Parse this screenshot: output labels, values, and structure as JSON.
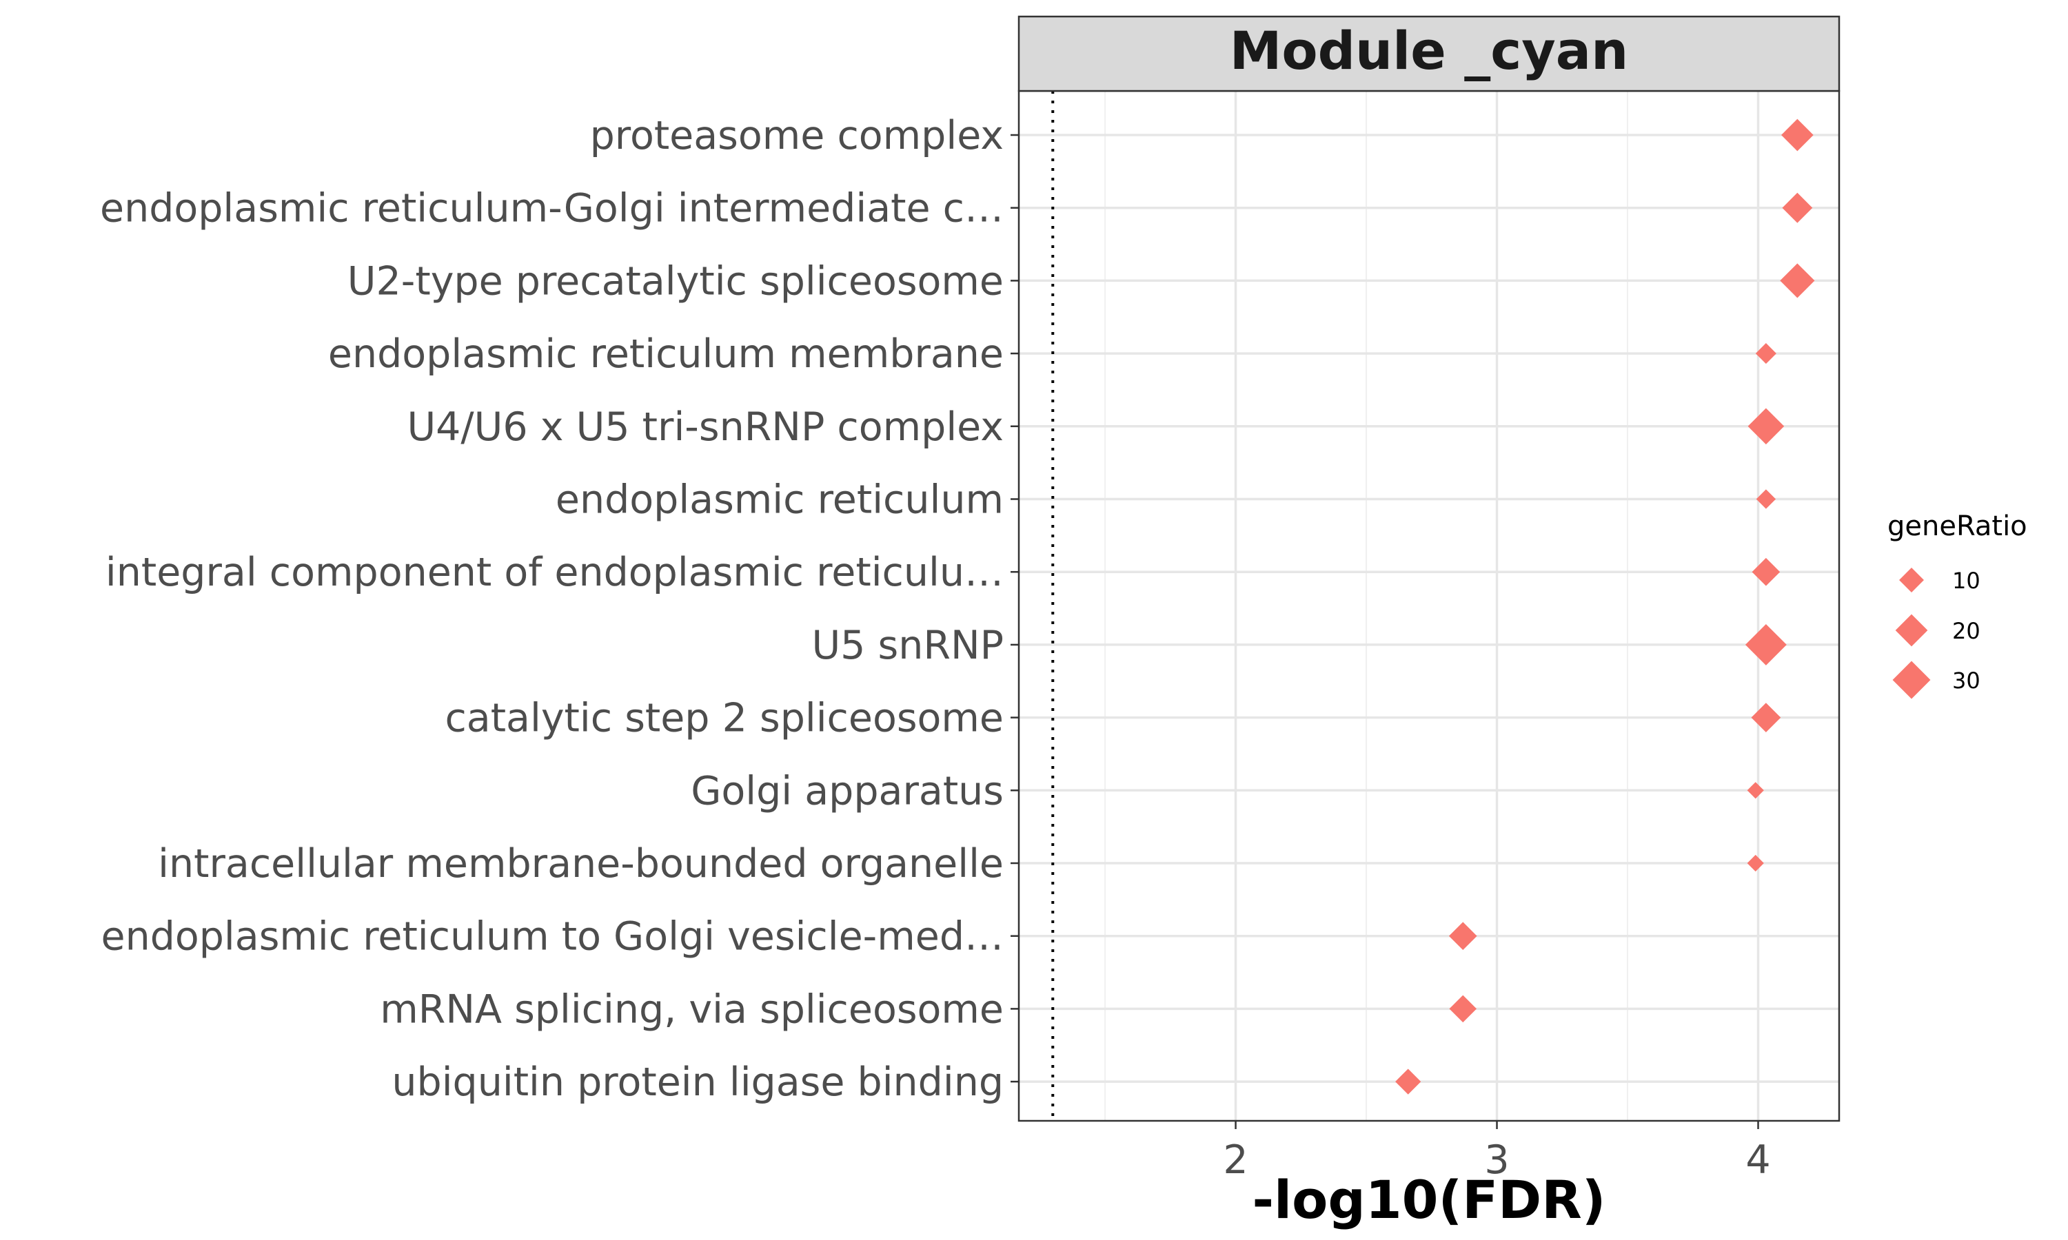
{
  "chart_data": {
    "type": "scatter",
    "title": "Module _cyan",
    "xlabel": "-log10(FDR)",
    "ylabel": "",
    "xlim": [
      1.17,
      4.31
    ],
    "x_ticks": [
      "2",
      "3",
      "4"
    ],
    "reference_line": {
      "x": 1.3,
      "style": "dotted"
    },
    "grid": true,
    "marker": "diamond",
    "color": "#F8766D",
    "legend": {
      "title": "geneRatio",
      "placement": "right",
      "entries": [
        {
          "label": "10",
          "value": 10
        },
        {
          "label": "20",
          "value": 20
        },
        {
          "label": "30",
          "value": 30
        }
      ]
    },
    "categories": [
      "proteasome complex",
      "endoplasmic reticulum-Golgi intermediate c…",
      "U2-type precatalytic spliceosome",
      "endoplasmic reticulum membrane",
      "U4/U6 x U5 tri-snRNP complex",
      "endoplasmic reticulum",
      "integral component of endoplasmic reticulu…",
      "U5 snRNP",
      "catalytic step 2 spliceosome",
      "Golgi apparatus",
      "intracellular membrane-bounded organelle",
      "endoplasmic reticulum to Golgi vesicle-med…",
      "mRNA splicing, via spliceosome",
      "ubiquitin protein ligase binding"
    ],
    "points": [
      {
        "category": "proteasome complex",
        "x": 4.15,
        "geneRatio": 20
      },
      {
        "category": "endoplasmic reticulum-Golgi intermediate c…",
        "x": 4.15,
        "geneRatio": 17
      },
      {
        "category": "U2-type precatalytic spliceosome",
        "x": 4.15,
        "geneRatio": 24
      },
      {
        "category": "endoplasmic reticulum membrane",
        "x": 4.03,
        "geneRatio": 6
      },
      {
        "category": "U4/U6 x U5 tri-snRNP complex",
        "x": 4.03,
        "geneRatio": 27
      },
      {
        "category": "endoplasmic reticulum",
        "x": 4.03,
        "geneRatio": 5
      },
      {
        "category": "integral component of endoplasmic reticulu…",
        "x": 4.03,
        "geneRatio": 14
      },
      {
        "category": "U5 snRNP",
        "x": 4.03,
        "geneRatio": 37
      },
      {
        "category": "catalytic step 2 spliceosome",
        "x": 4.03,
        "geneRatio": 16
      },
      {
        "category": "Golgi apparatus",
        "x": 3.99,
        "geneRatio": 3
      },
      {
        "category": "intracellular membrane-bounded organelle",
        "x": 3.99,
        "geneRatio": 3
      },
      {
        "category": "endoplasmic reticulum to Golgi vesicle-med…",
        "x": 2.87,
        "geneRatio": 14
      },
      {
        "category": "mRNA splicing, via spliceosome",
        "x": 2.87,
        "geneRatio": 13
      },
      {
        "category": "ubiquitin protein ligase binding",
        "x": 2.66,
        "geneRatio": 11
      }
    ]
  }
}
